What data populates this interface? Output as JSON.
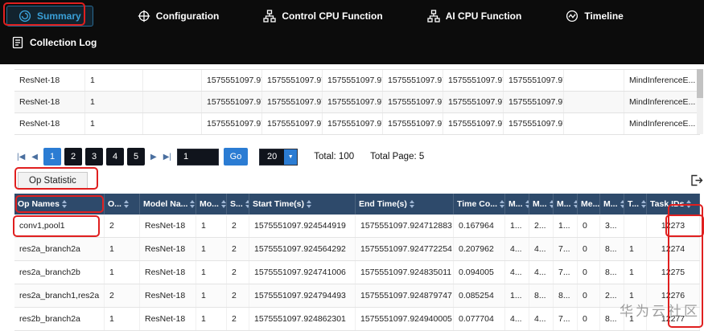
{
  "topnav": {
    "tabs": [
      {
        "label": "Summary",
        "active": true
      },
      {
        "label": "Configuration",
        "active": false
      },
      {
        "label": "Control CPU Function",
        "active": false
      },
      {
        "label": "AI CPU Function",
        "active": false
      },
      {
        "label": "Timeline",
        "active": false
      }
    ],
    "secondary_tab": {
      "label": "Collection Log"
    }
  },
  "summary_table": {
    "rows": [
      {
        "cells": [
          "ResNet-18",
          "1",
          "",
          "1575551097.97...",
          "1575551097.97...",
          "1575551097.97...",
          "1575551097.97...",
          "1575551097.97...",
          "1575551097.97...",
          "",
          "MindInferenceE..."
        ]
      },
      {
        "cells": [
          "ResNet-18",
          "1",
          "",
          "1575551097.97...",
          "1575551097.97...",
          "1575551097.97...",
          "1575551097.97...",
          "1575551097.97...",
          "1575551097.97...",
          "",
          "MindInferenceE..."
        ]
      },
      {
        "cells": [
          "ResNet-18",
          "1",
          "",
          "1575551097.97...",
          "1575551097.97...",
          "1575551097.97...",
          "1575551097.97...",
          "1575551097.97...",
          "1575551097.97...",
          "",
          "MindInferenceE..."
        ]
      }
    ]
  },
  "pagination": {
    "first_icon": "|◀",
    "prev_icon": "◀",
    "next_icon": "▶",
    "last_icon": "▶|",
    "pages": [
      "1",
      "2",
      "3",
      "4",
      "5"
    ],
    "current_page": "1",
    "page_input_value": "1",
    "go_label": "Go",
    "page_size": "20",
    "dropdown_icon": "▼",
    "total_label": "Total: 100",
    "total_page_label": "Total Page: 5"
  },
  "op_statistic": {
    "tab_label": "Op Statistic"
  },
  "op_table": {
    "headers": [
      "Op Names",
      "O...",
      "Model Na...",
      "Mo...",
      "S...",
      "Start Time(s)",
      "End Time(s)",
      "Time Co...",
      "M...",
      "M...",
      "M...",
      "Me...",
      "M...",
      "T...",
      "Task IDs"
    ],
    "rows": [
      {
        "cells": [
          "conv1,pool1",
          "2",
          "ResNet-18",
          "1",
          "2",
          "1575551097.924544919",
          "1575551097.924712883",
          "0.167964",
          "1...",
          "2...",
          "1...",
          "0",
          "3...",
          "",
          "12273"
        ]
      },
      {
        "cells": [
          "res2a_branch2a",
          "1",
          "ResNet-18",
          "1",
          "2",
          "1575551097.924564292",
          "1575551097.924772254",
          "0.207962",
          "4...",
          "4...",
          "7...",
          "0",
          "8...",
          "1",
          "12274"
        ]
      },
      {
        "cells": [
          "res2a_branch2b",
          "1",
          "ResNet-18",
          "1",
          "2",
          "1575551097.924741006",
          "1575551097.924835011",
          "0.094005",
          "4...",
          "4...",
          "7...",
          "0",
          "8...",
          "1",
          "12275"
        ]
      },
      {
        "cells": [
          "res2a_branch1,res2a",
          "2",
          "ResNet-18",
          "1",
          "2",
          "1575551097.924794493",
          "1575551097.924879747",
          "0.085254",
          "1...",
          "8...",
          "8...",
          "0",
          "2...",
          "1",
          "12276"
        ]
      },
      {
        "cells": [
          "res2b_branch2a",
          "1",
          "ResNet-18",
          "1",
          "2",
          "1575551097.924862301",
          "1575551097.924940005",
          "0.077704",
          "4...",
          "4...",
          "7...",
          "0",
          "8...",
          "1",
          "12277"
        ]
      }
    ]
  },
  "watermark": "华为云社区",
  "colors": {
    "accent_blue": "#2b7cd3",
    "header_navy": "#2e4a6b",
    "annotation_red": "#e01f1f",
    "summary_teal": "#3aa0d8",
    "nav_background": "#0c0c0c"
  }
}
